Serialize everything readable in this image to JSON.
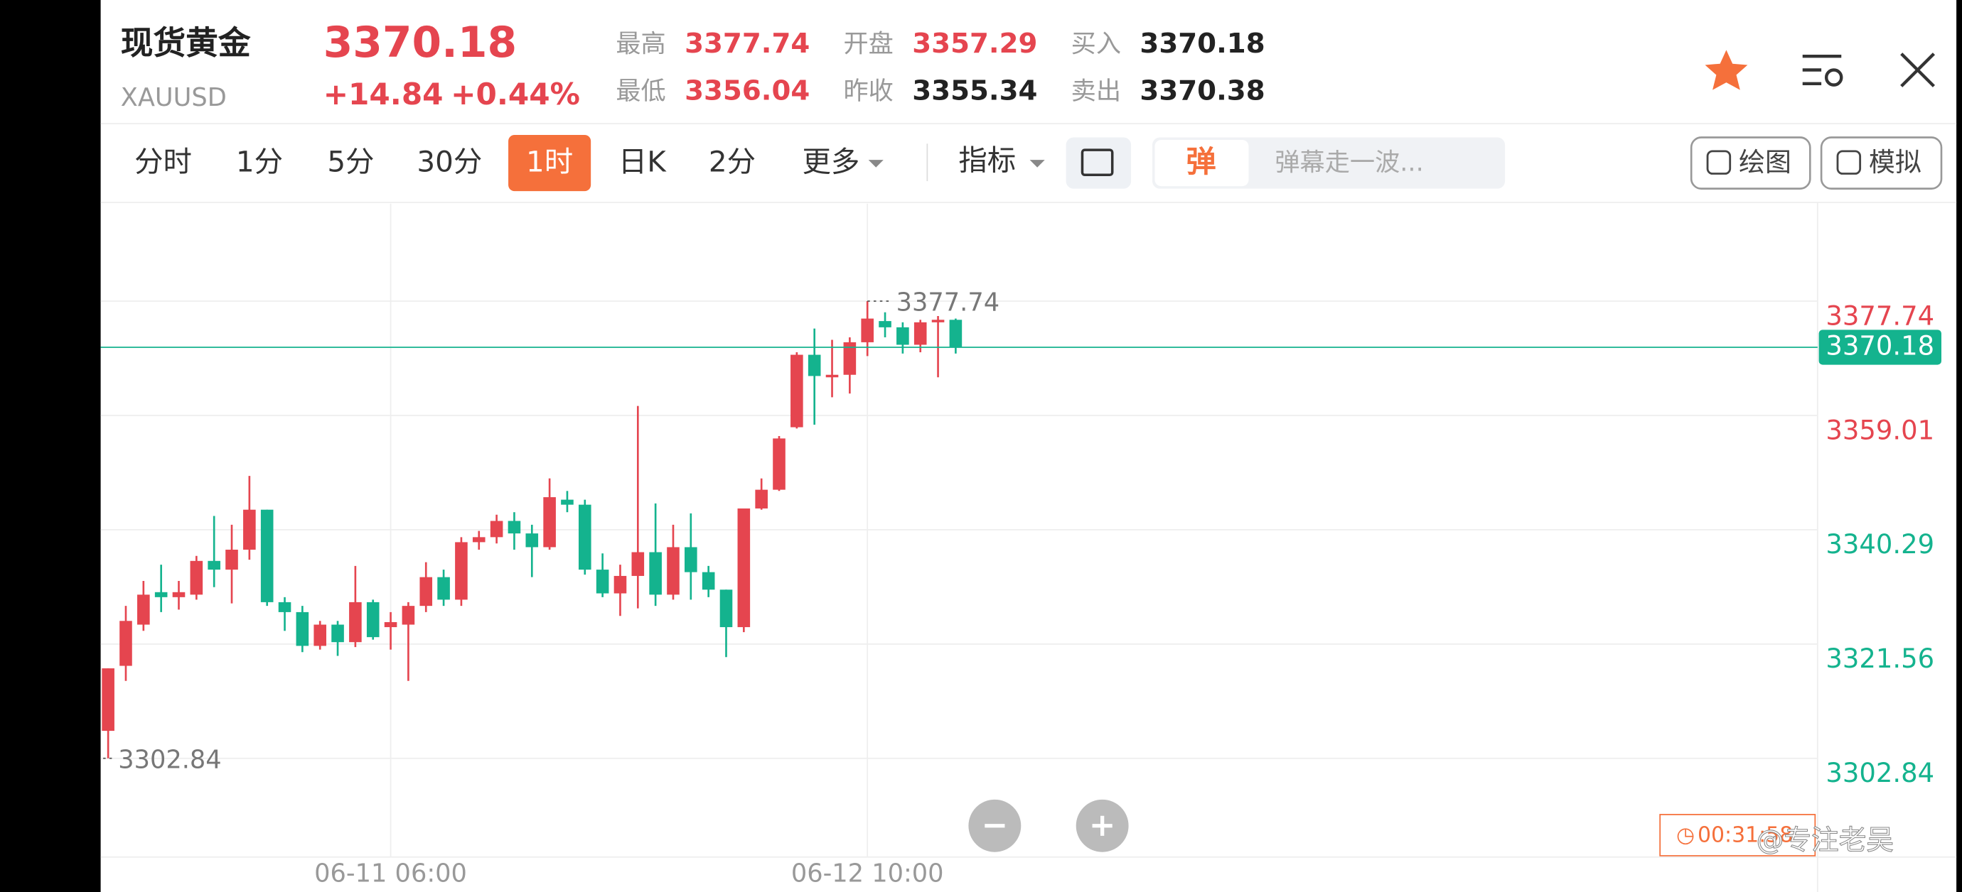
{
  "header": {
    "title": "现货黄金",
    "symbol": "XAUUSD",
    "price": 3370.18,
    "change": "+14.84",
    "change_pct": "+0.44%",
    "stats": [
      {
        "label": "最高",
        "value": 3377.74
      },
      {
        "label": "最低",
        "value": 3356.04
      },
      {
        "label": "开盘",
        "value": 3357.29
      },
      {
        "label": "昨收",
        "value": 3355.34
      },
      {
        "label": "买入",
        "value": 3370.18
      },
      {
        "label": "卖出",
        "value": 3370.38
      }
    ]
  },
  "toolbar": {
    "tabs": [
      "分时",
      "1分",
      "5分",
      "30分",
      "1时",
      "日K",
      "2分",
      "更多"
    ],
    "active_tab": 4,
    "indicator": "指标",
    "danmaku_icon": "弹",
    "danmaku_placeholder": "弹幕走一波...",
    "buttons": [
      "绘图",
      "模拟"
    ]
  },
  "chart_data": {
    "type": "candlestick",
    "up_color": "#e5454f",
    "down_color": "#14b38e",
    "categories": [
      null,
      null,
      null,
      null,
      null,
      null,
      null,
      null,
      null,
      null,
      null,
      null,
      null,
      null,
      null,
      null,
      "06-11 06:00",
      null,
      null,
      null,
      null,
      null,
      null,
      null,
      null,
      null,
      null,
      null,
      null,
      null,
      null,
      null,
      null,
      null,
      null,
      null,
      null,
      null,
      null,
      null,
      null,
      null,
      null,
      "06-12 10:00",
      null,
      null,
      null,
      null,
      null
    ],
    "open": [
      3307.34,
      3317.99,
      3324.74,
      3330.06,
      3329.24,
      3329.65,
      3335.18,
      3333.75,
      3337.02,
      3343.57,
      3328.42,
      3326.79,
      3321.26,
      3324.74,
      3321.87,
      3328.42,
      3324.33,
      3324.74,
      3327.81,
      3332.52,
      3328.83,
      3338.25,
      3339.07,
      3341.73,
      3339.68,
      3337.43,
      3345.21,
      3344.39,
      3333.75,
      3329.86,
      3332.72,
      3336.61,
      3329.65,
      3337.43,
      3333.34,
      3330.47,
      3324.33,
      3343.77,
      3346.84,
      3357.08,
      3368.95,
      3365.26,
      3365.67,
      3371.0,
      3374.47,
      3373.45,
      3370.59,
      3374.27,
      3374.68
    ],
    "high": [
      3317.58,
      3327.81,
      3331.9,
      3334.56,
      3331.9,
      3336.0,
      3342.55,
      3341.11,
      3349.1,
      3343.57,
      3329.24,
      3327.81,
      3325.35,
      3325.35,
      3334.36,
      3328.83,
      3326.79,
      3328.42,
      3334.97,
      3333.75,
      3339.07,
      3340.09,
      3342.75,
      3343.16,
      3341.11,
      3348.69,
      3346.64,
      3345.21,
      3336.41,
      3334.56,
      3360.56,
      3344.59,
      3341.11,
      3342.96,
      3334.36,
      3330.47,
      3343.77,
      3348.69,
      3355.64,
      3369.36,
      3373.25,
      3371.4,
      3371.81,
      3377.74,
      3375.91,
      3374.27,
      3374.68,
      3375.29,
      3374.88
    ],
    "low": [
      3302.84,
      3315.53,
      3323.72,
      3326.79,
      3327.2,
      3328.83,
      3330.88,
      3328.22,
      3335.38,
      3327.81,
      3323.72,
      3320.24,
      3320.65,
      3319.62,
      3321.06,
      3322.28,
      3320.65,
      3315.53,
      3326.79,
      3327.81,
      3327.81,
      3337.02,
      3338.04,
      3337.02,
      3332.52,
      3337.02,
      3343.16,
      3332.93,
      3329.24,
      3326.17,
      3327.4,
      3327.81,
      3328.83,
      3328.83,
      3329.24,
      3319.42,
      3323.51,
      3343.57,
      3346.64,
      3356.87,
      3357.49,
      3361.99,
      3362.6,
      3368.74,
      3371.81,
      3369.15,
      3369.36,
      3365.26,
      3369.15
    ],
    "close": [
      3317.58,
      3325.35,
      3329.65,
      3329.24,
      3330.06,
      3335.18,
      3333.75,
      3337.02,
      3343.57,
      3328.42,
      3326.79,
      3321.26,
      3324.74,
      3321.87,
      3328.42,
      3322.69,
      3325.15,
      3327.81,
      3332.52,
      3328.83,
      3338.25,
      3339.07,
      3341.73,
      3339.68,
      3337.43,
      3345.62,
      3344.39,
      3333.75,
      3329.86,
      3332.72,
      3336.61,
      3329.65,
      3337.43,
      3333.34,
      3330.47,
      3324.33,
      3343.77,
      3346.84,
      3355.24,
      3368.95,
      3365.47,
      3365.67,
      3371.0,
      3374.88,
      3373.45,
      3370.59,
      3374.27,
      3374.68,
      3370.18
    ],
    "ylim": [
      3286.67,
      3393.71
    ],
    "yticks": [
      3302.84,
      3321.56,
      3340.29,
      3359.01,
      3377.74
    ],
    "grid": true,
    "max_label": 3377.74,
    "min_label": 3302.84,
    "last_price": 3370.18,
    "timer": "00:31:58"
  },
  "watermark": "@专注老吴"
}
